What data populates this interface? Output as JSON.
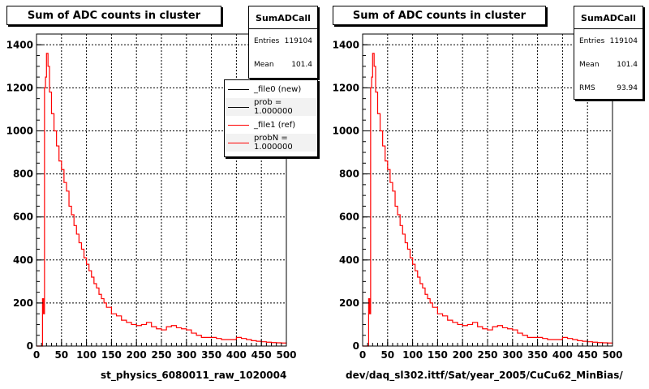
{
  "panels": [
    {
      "title": "Sum of ADC counts in cluster",
      "stats": {
        "name": "SumADCall",
        "rows": [
          {
            "label": "Entries",
            "value": "119104"
          },
          {
            "label": "Mean",
            "value": "101.4"
          }
        ]
      },
      "xcaption": "st_physics_6080011_raw_1020004",
      "legend": [
        {
          "label": "_file0 (new)",
          "color": "#000000"
        },
        {
          "label": "prob = 1.000000",
          "color": "#000000"
        },
        {
          "label": "_file1 (ref)",
          "color": "#ff0000"
        },
        {
          "label": "probN = 1.000000",
          "color": "#ff0000"
        }
      ]
    },
    {
      "title": "Sum of ADC counts in cluster",
      "stats": {
        "name": "SumADCall",
        "rows": [
          {
            "label": "Entries",
            "value": "119104"
          },
          {
            "label": "Mean",
            "value": "101.4"
          },
          {
            "label": "RMS",
            "value": "93.94"
          }
        ]
      },
      "xcaption": "dev/daq_sl302.ittf/Sat/year_2005/CuCu62_MinBias/"
    }
  ],
  "chart_data": [
    {
      "type": "line",
      "title": "Sum of ADC counts in cluster",
      "xlabel": "st_physics_6080011_raw_1020004",
      "ylabel": "",
      "xlim": [
        0,
        500
      ],
      "ylim": [
        0,
        1450
      ],
      "xticks": [
        0,
        50,
        100,
        150,
        200,
        250,
        300,
        350,
        400,
        450,
        500
      ],
      "yticks": [
        0,
        200,
        400,
        600,
        800,
        1000,
        1200,
        1400
      ],
      "grid": true,
      "legend_position": "top-right",
      "series": [
        {
          "name": "_file1 (ref)",
          "color": "#ff0000",
          "x": [
            0,
            10,
            12,
            14,
            16,
            18,
            20,
            23,
            26,
            30,
            35,
            40,
            45,
            50,
            55,
            60,
            65,
            70,
            75,
            80,
            85,
            90,
            95,
            100,
            105,
            110,
            115,
            120,
            125,
            130,
            135,
            140,
            150,
            160,
            170,
            180,
            190,
            200,
            210,
            220,
            230,
            240,
            250,
            260,
            270,
            280,
            290,
            300,
            310,
            320,
            330,
            340,
            350,
            360,
            370,
            380,
            390,
            400,
            410,
            420,
            430,
            440,
            450,
            460,
            470,
            480,
            490,
            500
          ],
          "y": [
            0,
            0,
            220,
            150,
            1200,
            1250,
            1360,
            1300,
            1180,
            1080,
            1000,
            930,
            860,
            820,
            760,
            720,
            650,
            610,
            560,
            520,
            480,
            450,
            410,
            380,
            350,
            320,
            290,
            270,
            240,
            220,
            200,
            180,
            150,
            140,
            120,
            110,
            100,
            95,
            100,
            110,
            90,
            80,
            75,
            90,
            95,
            85,
            80,
            75,
            60,
            50,
            40,
            40,
            40,
            35,
            30,
            30,
            30,
            40,
            35,
            30,
            25,
            22,
            20,
            18,
            16,
            15,
            14,
            12
          ]
        }
      ]
    },
    {
      "type": "line",
      "title": "Sum of ADC counts in cluster",
      "xlabel": "dev/daq_sl302.ittf/Sat/year_2005/CuCu62_MinBias/",
      "ylabel": "",
      "xlim": [
        0,
        500
      ],
      "ylim": [
        0,
        1450
      ],
      "xticks": [
        0,
        50,
        100,
        150,
        200,
        250,
        300,
        350,
        400,
        450,
        500
      ],
      "yticks": [
        0,
        200,
        400,
        600,
        800,
        1000,
        1200,
        1400
      ],
      "grid": true,
      "series": [
        {
          "color": "#ff0000",
          "x": [
            0,
            10,
            12,
            14,
            16,
            18,
            20,
            23,
            26,
            30,
            35,
            40,
            45,
            50,
            55,
            60,
            65,
            70,
            75,
            80,
            85,
            90,
            95,
            100,
            105,
            110,
            115,
            120,
            125,
            130,
            135,
            140,
            150,
            160,
            170,
            180,
            190,
            200,
            210,
            220,
            230,
            240,
            250,
            260,
            270,
            280,
            290,
            300,
            310,
            320,
            330,
            340,
            350,
            360,
            370,
            380,
            390,
            400,
            410,
            420,
            430,
            440,
            450,
            460,
            470,
            480,
            490,
            500
          ],
          "y": [
            0,
            0,
            220,
            150,
            1200,
            1250,
            1360,
            1300,
            1180,
            1080,
            1000,
            930,
            860,
            820,
            760,
            720,
            650,
            610,
            560,
            520,
            480,
            450,
            410,
            380,
            350,
            320,
            290,
            270,
            240,
            220,
            200,
            180,
            150,
            140,
            120,
            110,
            100,
            95,
            100,
            110,
            90,
            80,
            75,
            90,
            95,
            85,
            80,
            75,
            60,
            50,
            40,
            40,
            40,
            35,
            30,
            30,
            30,
            40,
            35,
            30,
            25,
            22,
            20,
            18,
            16,
            15,
            14,
            12
          ]
        }
      ]
    }
  ]
}
